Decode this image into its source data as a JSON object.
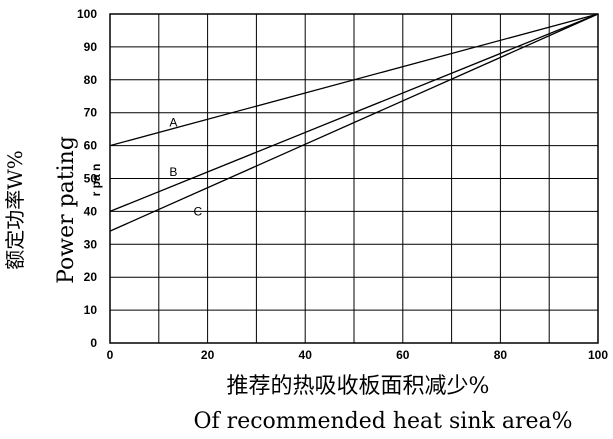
{
  "chart_data": {
    "type": "line",
    "title": "",
    "xlabel_cn": "推荐的热吸收板面积减少%",
    "xlabel_en": "Of recommended heat sink area%",
    "ylabel_cn": "额定功率W%",
    "ylabel_en": "Power pating",
    "ylabel_overlap": "r pa n",
    "xlim": [
      0,
      100
    ],
    "ylim": [
      0,
      100
    ],
    "x_ticks": [
      "0",
      "20",
      "40",
      "60",
      "80",
      "100"
    ],
    "y_ticks": [
      "0",
      "10",
      "20",
      "30",
      "40",
      "50",
      "60",
      "70",
      "80",
      "90",
      "100"
    ],
    "grid": true,
    "series": [
      {
        "name": "A",
        "x": [
          0,
          100
        ],
        "y": [
          60,
          100
        ],
        "label_at": [
          13,
          67
        ]
      },
      {
        "name": "B",
        "x": [
          0,
          100
        ],
        "y": [
          40,
          100
        ],
        "label_at": [
          13,
          52
        ]
      },
      {
        "name": "C",
        "x": [
          0,
          100
        ],
        "y": [
          34,
          100
        ],
        "label_at": [
          18,
          40
        ]
      }
    ]
  }
}
